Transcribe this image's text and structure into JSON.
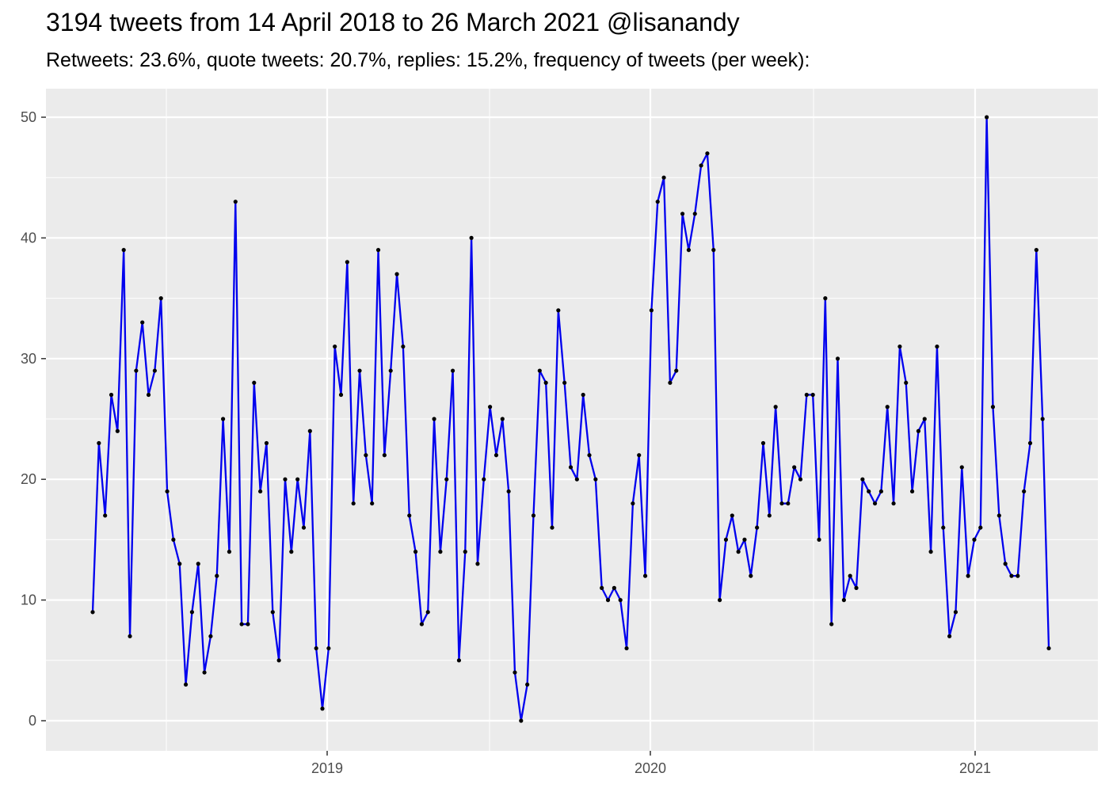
{
  "chart_data": {
    "type": "line",
    "title": "3194 tweets from 14 April 2018 to 26 March 2021 @lisanandy",
    "subtitle": "Retweets: 23.6%, quote tweets: 20.7%, replies: 15.2%, frequency of tweets (per week):",
    "xlabel": "",
    "ylabel": "",
    "y_ticks": [
      0,
      10,
      20,
      30,
      40,
      50
    ],
    "x_ticks": [
      "2019",
      "2020",
      "2021"
    ],
    "grid": true,
    "legend": "none",
    "series": [
      {
        "values": [
          9,
          23,
          17,
          27,
          24,
          39,
          7,
          29,
          33,
          27,
          29,
          35,
          19,
          15,
          13,
          3,
          9,
          13,
          4,
          7,
          12,
          25,
          14,
          43,
          8,
          8,
          28,
          19,
          23,
          9,
          5,
          20,
          14,
          20,
          16,
          24,
          6,
          1,
          6,
          31,
          27,
          38,
          18,
          29,
          22,
          18,
          39,
          22,
          29,
          37,
          31,
          17,
          14,
          8,
          9,
          25,
          14,
          20,
          29,
          5,
          14,
          40,
          13,
          20,
          26,
          22,
          25,
          19,
          4,
          0,
          3,
          17,
          29,
          28,
          16,
          34,
          28,
          21,
          20,
          27,
          22,
          20,
          11,
          10,
          11,
          10,
          6,
          18,
          22,
          12,
          34,
          43,
          45,
          28,
          29,
          42,
          39,
          42,
          46,
          47,
          39,
          10,
          15,
          17,
          14,
          15,
          12,
          16,
          23,
          17,
          26,
          18,
          18,
          21,
          20,
          27,
          27,
          15,
          35,
          8,
          30,
          10,
          12,
          11,
          20,
          19,
          18,
          19,
          26,
          18,
          31,
          28,
          19,
          24,
          25,
          14,
          31,
          16,
          7,
          9,
          21,
          12,
          15,
          16,
          50,
          26,
          17,
          13,
          12,
          12,
          19,
          23,
          39,
          25,
          6
        ]
      }
    ],
    "colors": {
      "line": "#0000ee",
      "point": "#000000",
      "panel": "#ebebeb",
      "grid": "#ffffff",
      "text": "#4d4d4d"
    }
  }
}
